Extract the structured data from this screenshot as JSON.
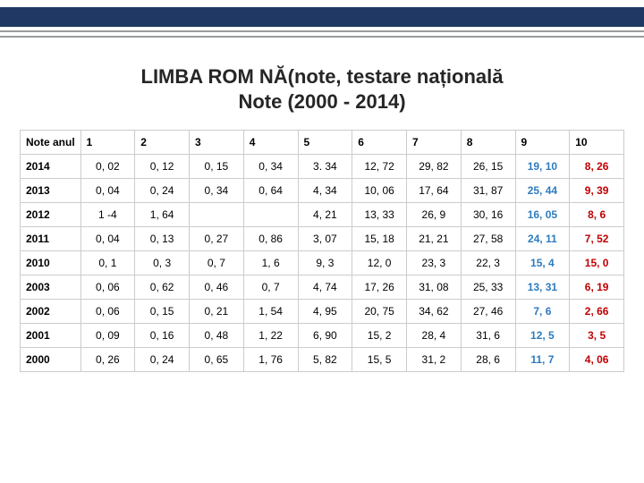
{
  "title_line1": "LIMBA ROM NĂ(note, testare națională",
  "title_line2": "Note (2000 - 2014)",
  "colors": {
    "top_bar": "#1f3864",
    "grey_line": "#9a9a9a",
    "col9_text": "#2e7bbf",
    "col10_text": "#c00000",
    "border": "#cccccc",
    "background": "#ffffff"
  },
  "table": {
    "type": "table",
    "header_label": "Note anul",
    "columns": [
      "1",
      "2",
      "3",
      "4",
      "5",
      "6",
      "7",
      "8",
      "9",
      "10"
    ],
    "rows": [
      {
        "year": "2014",
        "cells": [
          "0, 02",
          "0, 12",
          "0, 15",
          "0, 34",
          "3. 34",
          "12, 72",
          "29, 82",
          "26, 15",
          "19, 10",
          "8, 26"
        ]
      },
      {
        "year": "2013",
        "cells": [
          "0, 04",
          "0, 24",
          "0, 34",
          "0, 64",
          "4, 34",
          "10, 06",
          "17, 64",
          "31, 87",
          "25, 44",
          "9, 39"
        ]
      },
      {
        "year": "2012",
        "cells": [
          "1 -4",
          "1, 64",
          "",
          "",
          "4, 21",
          "13, 33",
          "26, 9",
          "30, 16",
          "16, 05",
          "8, 6"
        ]
      },
      {
        "year": "2011",
        "cells": [
          "0, 04",
          "0, 13",
          "0, 27",
          "0, 86",
          "3, 07",
          "15, 18",
          "21, 21",
          "27, 58",
          "24, 11",
          "7, 52"
        ]
      },
      {
        "year": "2010",
        "cells": [
          "0, 1",
          "0, 3",
          "0, 7",
          "1, 6",
          "9, 3",
          "12, 0",
          "23, 3",
          "22, 3",
          "15, 4",
          "15, 0"
        ]
      },
      {
        "year": "2003",
        "cells": [
          "0, 06",
          "0, 62",
          "0, 46",
          "0, 7",
          "4, 74",
          "17, 26",
          "31, 08",
          "25, 33",
          "13, 31",
          "6, 19"
        ]
      },
      {
        "year": "2002",
        "cells": [
          "0, 06",
          "0, 15",
          "0, 21",
          "1, 54",
          "4, 95",
          "20, 75",
          "34, 62",
          "27, 46",
          "7, 6",
          "2, 66"
        ]
      },
      {
        "year": "2001",
        "cells": [
          "0, 09",
          "0, 16",
          "0, 48",
          "1, 22",
          "6, 90",
          "15, 2",
          "28, 4",
          "31, 6",
          "12, 5",
          "3, 5"
        ]
      },
      {
        "year": "2000",
        "cells": [
          "0, 26",
          "0, 24",
          "0, 65",
          "1, 76",
          "5, 82",
          "15, 5",
          "31, 2",
          "28, 6",
          "11, 7",
          "4, 06"
        ]
      }
    ]
  }
}
